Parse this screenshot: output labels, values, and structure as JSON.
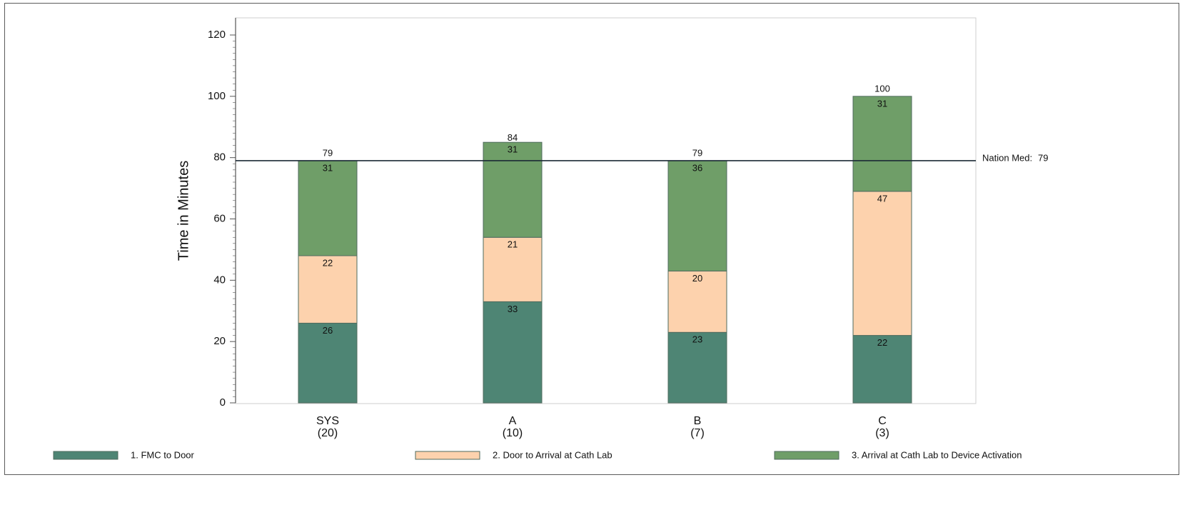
{
  "chart_data": {
    "type": "bar",
    "stacked": true,
    "title": "",
    "xlabel": "",
    "ylabel": "Time in Minutes",
    "ylim": [
      0,
      120
    ],
    "yticks": [
      0,
      20,
      40,
      60,
      80,
      100,
      120
    ],
    "categories": [
      {
        "name": "SYS",
        "n": "(20)"
      },
      {
        "name": "A",
        "n": "(10)"
      },
      {
        "name": "B",
        "n": "(7)"
      },
      {
        "name": "C",
        "n": "(3)"
      }
    ],
    "series": [
      {
        "name": "1. FMC to Door",
        "color": "#4e8574",
        "values": [
          26,
          33,
          23,
          22
        ]
      },
      {
        "name": "2. Door to Arrival at Cath Lab",
        "color": "#fdd2ad",
        "values": [
          22,
          21,
          20,
          47
        ]
      },
      {
        "name": "3. Arrival at Cath Lab to Device Activation",
        "color": "#6f9e68",
        "values": [
          31,
          31,
          36,
          31
        ]
      }
    ],
    "totals": [
      79,
      84,
      79,
      100
    ],
    "reference_line": {
      "label": "Nation Med:",
      "value": 79
    },
    "legend": "bottom",
    "grid": false
  }
}
